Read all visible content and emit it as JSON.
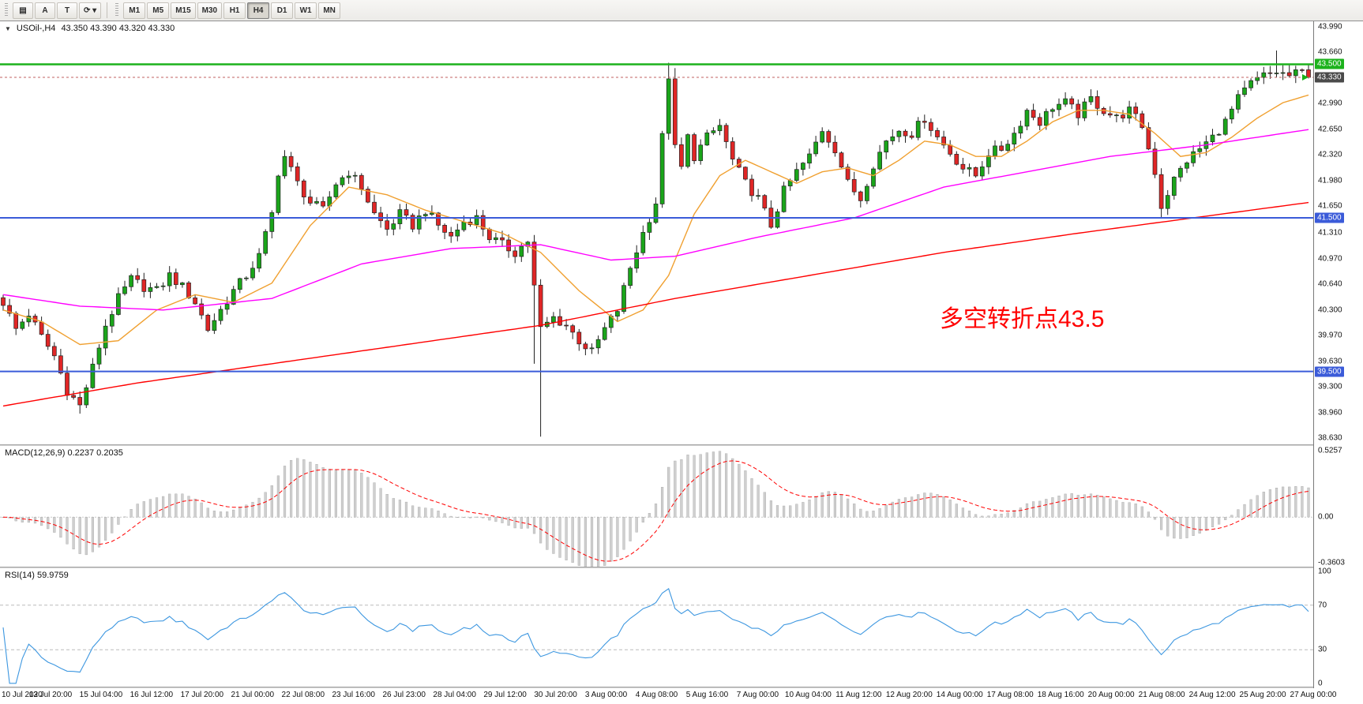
{
  "toolbar": {
    "tools": [
      {
        "name": "indicator-window-button",
        "glyph": "▤"
      },
      {
        "name": "text-annotation-button",
        "label": "A"
      },
      {
        "name": "type-tool-button",
        "label": "T"
      },
      {
        "name": "auto-scroll-button",
        "glyph": "⟳",
        "caret": true
      }
    ],
    "timeframes": [
      "M1",
      "M5",
      "M15",
      "M30",
      "H1",
      "H4",
      "D1",
      "W1",
      "MN"
    ],
    "active_timeframe": "H4"
  },
  "chart": {
    "collapse_icon": "▼",
    "symbol_timeframe": "USOil-,H4",
    "ohlc": "43.350 43.390 43.320 43.330",
    "annotation": {
      "text": "多空转折点43.5",
      "color": "#ff0000"
    },
    "price_axis": [
      "43.990",
      "43.660",
      "43.330",
      "42.990",
      "42.650",
      "42.320",
      "41.980",
      "41.650",
      "41.310",
      "40.970",
      "40.640",
      "40.300",
      "39.970",
      "39.630",
      "39.300",
      "38.960",
      "38.630"
    ],
    "levels": [
      {
        "value": 43.5,
        "label": "43.500",
        "color": "#1cb21c",
        "width": 2.5
      },
      {
        "value": 41.5,
        "label": "41.500",
        "color": "#3b5bd9",
        "width": 2
      },
      {
        "value": 39.5,
        "label": "39.500",
        "color": "#3b5bd9",
        "width": 2
      }
    ],
    "current_price": {
      "value": 43.33,
      "label": "43.330",
      "tag_color": "#4a4a4a"
    },
    "colors": {
      "bull": "#1aa51a",
      "bear": "#e02626",
      "wick": "#222222",
      "candle_outline": "#222222",
      "ma_fast": "#f0a030",
      "ma_mid": "#ff00ff",
      "ma_slow": "#ff0000",
      "macd_hist": "#cfcfcf",
      "macd_hist_outline": "#a8a8a8",
      "macd_signal": "#ff0000",
      "rsi_line": "#3d97e0"
    }
  },
  "macd": {
    "header": "MACD(12,26,9) 0.2237 0.2035",
    "axis": [
      "0.5257",
      "0.00",
      "-0.3603"
    ]
  },
  "rsi": {
    "header": "RSI(14) 59.9759",
    "axis": [
      "100",
      "70",
      "30",
      "0"
    ],
    "levels": [
      70,
      30
    ]
  },
  "time_axis": [
    "10 Jul 2020",
    "13 Jul 20:00",
    "15 Jul 04:00",
    "16 Jul 12:00",
    "17 Jul 20:00",
    "21 Jul 00:00",
    "22 Jul 08:00",
    "23 Jul 16:00",
    "26 Jul 23:00",
    "28 Jul 04:00",
    "29 Jul 12:00",
    "30 Jul 20:00",
    "3 Aug 00:00",
    "4 Aug 08:00",
    "5 Aug 16:00",
    "7 Aug 00:00",
    "10 Aug 04:00",
    "11 Aug 12:00",
    "12 Aug 20:00",
    "14 Aug 00:00",
    "17 Aug 08:00",
    "18 Aug 16:00",
    "20 Aug 00:00",
    "21 Aug 08:00",
    "24 Aug 12:00",
    "25 Aug 20:00",
    "27 Aug 00:00"
  ],
  "chart_data": {
    "type": "candlestick",
    "symbol": "USOil-",
    "timeframe": "H4",
    "candle_count": 205,
    "last_price": 43.33,
    "ohlc_display": {
      "open": 43.35,
      "high": 43.39,
      "low": 43.32,
      "close": 43.33
    },
    "price_range": [
      38.63,
      43.99
    ],
    "horizontal_levels": [
      43.5,
      41.5,
      39.5
    ],
    "close_anchors": [
      [
        0,
        40.4
      ],
      [
        2,
        40.05
      ],
      [
        4,
        40.25
      ],
      [
        6,
        39.95
      ],
      [
        8,
        39.7
      ],
      [
        10,
        39.25
      ],
      [
        12,
        39.05
      ],
      [
        14,
        39.55
      ],
      [
        16,
        40.1
      ],
      [
        18,
        40.45
      ],
      [
        20,
        40.7
      ],
      [
        22,
        40.6
      ],
      [
        24,
        40.55
      ],
      [
        26,
        40.75
      ],
      [
        28,
        40.6
      ],
      [
        30,
        40.4
      ],
      [
        32,
        40.05
      ],
      [
        34,
        40.3
      ],
      [
        36,
        40.55
      ],
      [
        38,
        40.75
      ],
      [
        40,
        41.0
      ],
      [
        42,
        41.55
      ],
      [
        43,
        42.1
      ],
      [
        44,
        42.3
      ],
      [
        46,
        41.95
      ],
      [
        48,
        41.7
      ],
      [
        50,
        41.6
      ],
      [
        52,
        41.95
      ],
      [
        54,
        42.1
      ],
      [
        56,
        41.9
      ],
      [
        58,
        41.55
      ],
      [
        60,
        41.35
      ],
      [
        62,
        41.55
      ],
      [
        64,
        41.4
      ],
      [
        66,
        41.6
      ],
      [
        68,
        41.4
      ],
      [
        70,
        41.25
      ],
      [
        72,
        41.45
      ],
      [
        74,
        41.5
      ],
      [
        76,
        41.25
      ],
      [
        78,
        41.15
      ],
      [
        80,
        41.05
      ],
      [
        82,
        41.2
      ],
      [
        83,
        40.6
      ],
      [
        84,
        40.05
      ],
      [
        86,
        40.2
      ],
      [
        88,
        40.1
      ],
      [
        90,
        39.9
      ],
      [
        92,
        39.75
      ],
      [
        94,
        40.05
      ],
      [
        96,
        40.3
      ],
      [
        98,
        40.85
      ],
      [
        100,
        41.3
      ],
      [
        102,
        41.7
      ],
      [
        103,
        42.55
      ],
      [
        104,
        43.35
      ],
      [
        105,
        42.4
      ],
      [
        106,
        42.15
      ],
      [
        107,
        42.55
      ],
      [
        108,
        42.3
      ],
      [
        110,
        42.55
      ],
      [
        112,
        42.7
      ],
      [
        114,
        42.25
      ],
      [
        116,
        41.95
      ],
      [
        118,
        41.75
      ],
      [
        120,
        41.4
      ],
      [
        122,
        41.85
      ],
      [
        124,
        42.1
      ],
      [
        126,
        42.3
      ],
      [
        128,
        42.65
      ],
      [
        130,
        42.4
      ],
      [
        132,
        41.95
      ],
      [
        134,
        41.75
      ],
      [
        136,
        42.2
      ],
      [
        138,
        42.5
      ],
      [
        140,
        42.65
      ],
      [
        142,
        42.6
      ],
      [
        144,
        42.8
      ],
      [
        146,
        42.55
      ],
      [
        148,
        42.35
      ],
      [
        150,
        42.15
      ],
      [
        152,
        42.05
      ],
      [
        154,
        42.35
      ],
      [
        156,
        42.4
      ],
      [
        158,
        42.6
      ],
      [
        160,
        42.9
      ],
      [
        162,
        42.75
      ],
      [
        164,
        42.95
      ],
      [
        166,
        43.0
      ],
      [
        168,
        42.85
      ],
      [
        170,
        43.05
      ],
      [
        172,
        42.9
      ],
      [
        174,
        42.8
      ],
      [
        176,
        42.9
      ],
      [
        178,
        42.7
      ],
      [
        180,
        42.1
      ],
      [
        181,
        41.65
      ],
      [
        183,
        42.0
      ],
      [
        185,
        42.25
      ],
      [
        187,
        42.4
      ],
      [
        189,
        42.55
      ],
      [
        191,
        42.75
      ],
      [
        193,
        43.05
      ],
      [
        195,
        43.25
      ],
      [
        197,
        43.35
      ],
      [
        199,
        43.4
      ],
      [
        201,
        43.35
      ],
      [
        203,
        43.4
      ],
      [
        204,
        43.33
      ]
    ],
    "wick_overrides": {
      "12": {
        "low": 38.95
      },
      "83": {
        "low": 39.6
      },
      "84": {
        "low": 38.65
      },
      "104": {
        "high": 43.52
      },
      "105": {
        "high": 43.45
      },
      "181": {
        "low": 41.5
      },
      "199": {
        "high": 43.68
      }
    },
    "ma_series": [
      {
        "name": "ma-fast-orange",
        "color_key": "ma_fast",
        "anchors": [
          [
            0,
            40.3
          ],
          [
            6,
            40.15
          ],
          [
            12,
            39.85
          ],
          [
            18,
            39.9
          ],
          [
            24,
            40.3
          ],
          [
            30,
            40.5
          ],
          [
            36,
            40.4
          ],
          [
            42,
            40.65
          ],
          [
            48,
            41.4
          ],
          [
            54,
            41.9
          ],
          [
            60,
            41.8
          ],
          [
            66,
            41.6
          ],
          [
            72,
            41.45
          ],
          [
            78,
            41.3
          ],
          [
            84,
            41.05
          ],
          [
            90,
            40.55
          ],
          [
            96,
            40.15
          ],
          [
            100,
            40.3
          ],
          [
            104,
            40.75
          ],
          [
            108,
            41.55
          ],
          [
            112,
            42.05
          ],
          [
            116,
            42.25
          ],
          [
            120,
            42.1
          ],
          [
            124,
            41.95
          ],
          [
            128,
            42.1
          ],
          [
            132,
            42.15
          ],
          [
            136,
            42.05
          ],
          [
            140,
            42.25
          ],
          [
            144,
            42.5
          ],
          [
            148,
            42.45
          ],
          [
            152,
            42.3
          ],
          [
            156,
            42.3
          ],
          [
            160,
            42.5
          ],
          [
            164,
            42.75
          ],
          [
            168,
            42.9
          ],
          [
            172,
            42.9
          ],
          [
            176,
            42.85
          ],
          [
            180,
            42.6
          ],
          [
            184,
            42.3
          ],
          [
            188,
            42.35
          ],
          [
            192,
            42.55
          ],
          [
            196,
            42.8
          ],
          [
            200,
            43.0
          ],
          [
            204,
            43.1
          ]
        ]
      },
      {
        "name": "ma-mid-magenta",
        "color_key": "ma_mid",
        "anchors": [
          [
            0,
            40.5
          ],
          [
            12,
            40.35
          ],
          [
            25,
            40.3
          ],
          [
            42,
            40.45
          ],
          [
            56,
            40.9
          ],
          [
            70,
            41.1
          ],
          [
            84,
            41.15
          ],
          [
            95,
            40.95
          ],
          [
            105,
            41.0
          ],
          [
            118,
            41.25
          ],
          [
            133,
            41.5
          ],
          [
            147,
            41.9
          ],
          [
            160,
            42.1
          ],
          [
            173,
            42.3
          ],
          [
            188,
            42.45
          ],
          [
            204,
            42.65
          ]
        ]
      },
      {
        "name": "ma-slow-red",
        "color_key": "ma_slow",
        "anchors": [
          [
            0,
            39.05
          ],
          [
            21,
            39.35
          ],
          [
            42,
            39.6
          ],
          [
            63,
            39.85
          ],
          [
            84,
            40.1
          ],
          [
            105,
            40.45
          ],
          [
            126,
            40.75
          ],
          [
            147,
            41.05
          ],
          [
            168,
            41.3
          ],
          [
            186,
            41.5
          ],
          [
            204,
            41.7
          ]
        ]
      }
    ],
    "indicators": {
      "macd": {
        "params": [
          12,
          26,
          9
        ],
        "last_main": 0.2237,
        "last_signal": 0.2035,
        "scale": [
          -0.3603,
          0.5257
        ]
      },
      "rsi": {
        "period": 14,
        "last": 59.9759,
        "levels": [
          70,
          30
        ],
        "scale": [
          0,
          100
        ]
      }
    }
  }
}
